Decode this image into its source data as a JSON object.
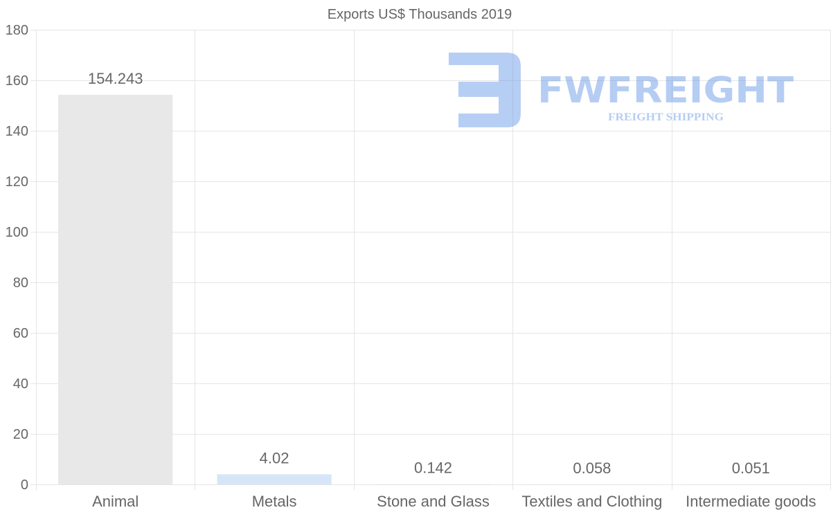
{
  "chart_data": {
    "type": "bar",
    "title": "Exports US$ Thousands 2019",
    "categories": [
      "Animal",
      "Metals",
      "Stone and Glass",
      "Textiles and Clothing",
      "Intermediate goods"
    ],
    "values": [
      154.243,
      4.02,
      0.142,
      0.058,
      0.051
    ],
    "value_labels": [
      "154.243",
      "4.02",
      "0.142",
      "0.058",
      "0.051"
    ],
    "bar_colors": [
      "#e8e8e8",
      "#d6e6f8",
      "#e8e8e8",
      "#e8e8e8",
      "#e8e8e8"
    ],
    "ylim": [
      0,
      180
    ],
    "yticks": [
      0,
      20,
      40,
      60,
      80,
      100,
      120,
      140,
      160,
      180
    ],
    "xlabel": "",
    "ylabel": "",
    "grid": true,
    "legend": "none"
  },
  "watermark": {
    "brand": "FWFREIGHT",
    "tagline": "FREIGHT SHIPPING",
    "color": "#6e9de8"
  },
  "colors": {
    "grid": "#e5e5e5",
    "text": "#666666"
  }
}
